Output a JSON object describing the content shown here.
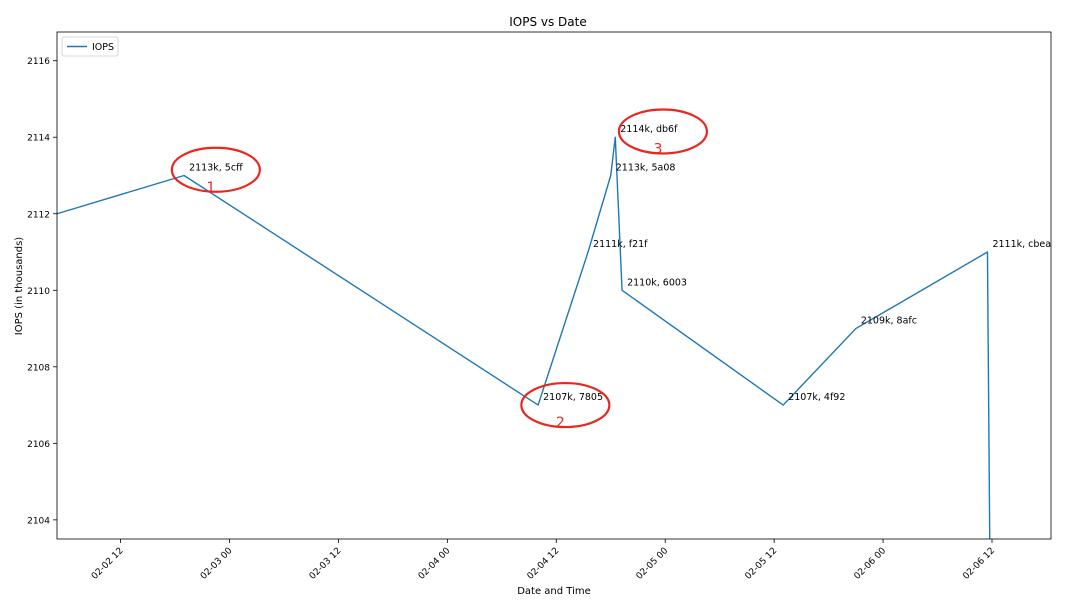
{
  "chart_data": {
    "type": "line",
    "title": "IOPS vs Date",
    "xlabel": "Date and Time",
    "ylabel": "IOPS (in thousands)",
    "xlim": [
      "2012-02-02 05:00",
      "2012-02-06 18:30"
    ],
    "ylim": [
      2103.5,
      2116.75
    ],
    "x_ticks": [
      {
        "value": "2012-02-02 12:00",
        "label": "02-02 12"
      },
      {
        "value": "2012-02-03 00:00",
        "label": "02-03 00"
      },
      {
        "value": "2012-02-03 12:00",
        "label": "02-03 12"
      },
      {
        "value": "2012-02-04 00:00",
        "label": "02-04 00"
      },
      {
        "value": "2012-02-04 12:00",
        "label": "02-04 12"
      },
      {
        "value": "2012-02-05 00:00",
        "label": "02-05 00"
      },
      {
        "value": "2012-02-05 12:00",
        "label": "02-05 12"
      },
      {
        "value": "2012-02-06 00:00",
        "label": "02-06 00"
      },
      {
        "value": "2012-02-06 12:00",
        "label": "02-06 12"
      }
    ],
    "y_ticks": [
      2104,
      2106,
      2108,
      2110,
      2112,
      2114,
      2116
    ],
    "legend": {
      "position": "top-left",
      "entries": [
        "IOPS"
      ]
    },
    "grid": false,
    "series": [
      {
        "name": "IOPS",
        "color": "#1f77b4",
        "points": [
          {
            "x": "2012-02-02 05:00",
            "y": 2112
          },
          {
            "x": "2012-02-02 19:00",
            "y": 2113
          },
          {
            "x": "2012-02-04 10:00",
            "y": 2107
          },
          {
            "x": "2012-02-04 15:30",
            "y": 2111
          },
          {
            "x": "2012-02-04 18:00",
            "y": 2113
          },
          {
            "x": "2012-02-04 18:30",
            "y": 2114
          },
          {
            "x": "2012-02-04 19:15",
            "y": 2110
          },
          {
            "x": "2012-02-05 13:00",
            "y": 2107
          },
          {
            "x": "2012-02-05 21:00",
            "y": 2109
          },
          {
            "x": "2012-02-06 11:30",
            "y": 2111
          },
          {
            "x": "2012-02-06 11:45",
            "y": 2103.5
          }
        ]
      }
    ],
    "annotations": [
      {
        "x": "2012-02-02 19:00",
        "y": 2113,
        "text": "2113k, 5cff"
      },
      {
        "x": "2012-02-04 10:00",
        "y": 2107,
        "text": "2107k, 7805"
      },
      {
        "x": "2012-02-04 15:30",
        "y": 2111,
        "text": "2111k, f21f"
      },
      {
        "x": "2012-02-04 18:00",
        "y": 2113,
        "text": "2113k, 5a08"
      },
      {
        "x": "2012-02-04 18:30",
        "y": 2114,
        "text": "2114k, db6f"
      },
      {
        "x": "2012-02-04 19:15",
        "y": 2110,
        "text": "2110k, 6003"
      },
      {
        "x": "2012-02-05 13:00",
        "y": 2107,
        "text": "2107k, 4f92"
      },
      {
        "x": "2012-02-05 21:00",
        "y": 2109,
        "text": "2109k, 8afc"
      },
      {
        "x": "2012-02-06 11:30",
        "y": 2111,
        "text": "2111k, cbea"
      }
    ],
    "highlights": [
      {
        "label": "1",
        "x": "2012-02-02 22:30",
        "y": 2113.15,
        "color": "#e8281e"
      },
      {
        "label": "2",
        "x": "2012-02-04 13:00",
        "y": 2107.0,
        "color": "#e8281e"
      },
      {
        "label": "3",
        "x": "2012-02-04 23:45",
        "y": 2114.15,
        "color": "#e8281e"
      }
    ]
  }
}
